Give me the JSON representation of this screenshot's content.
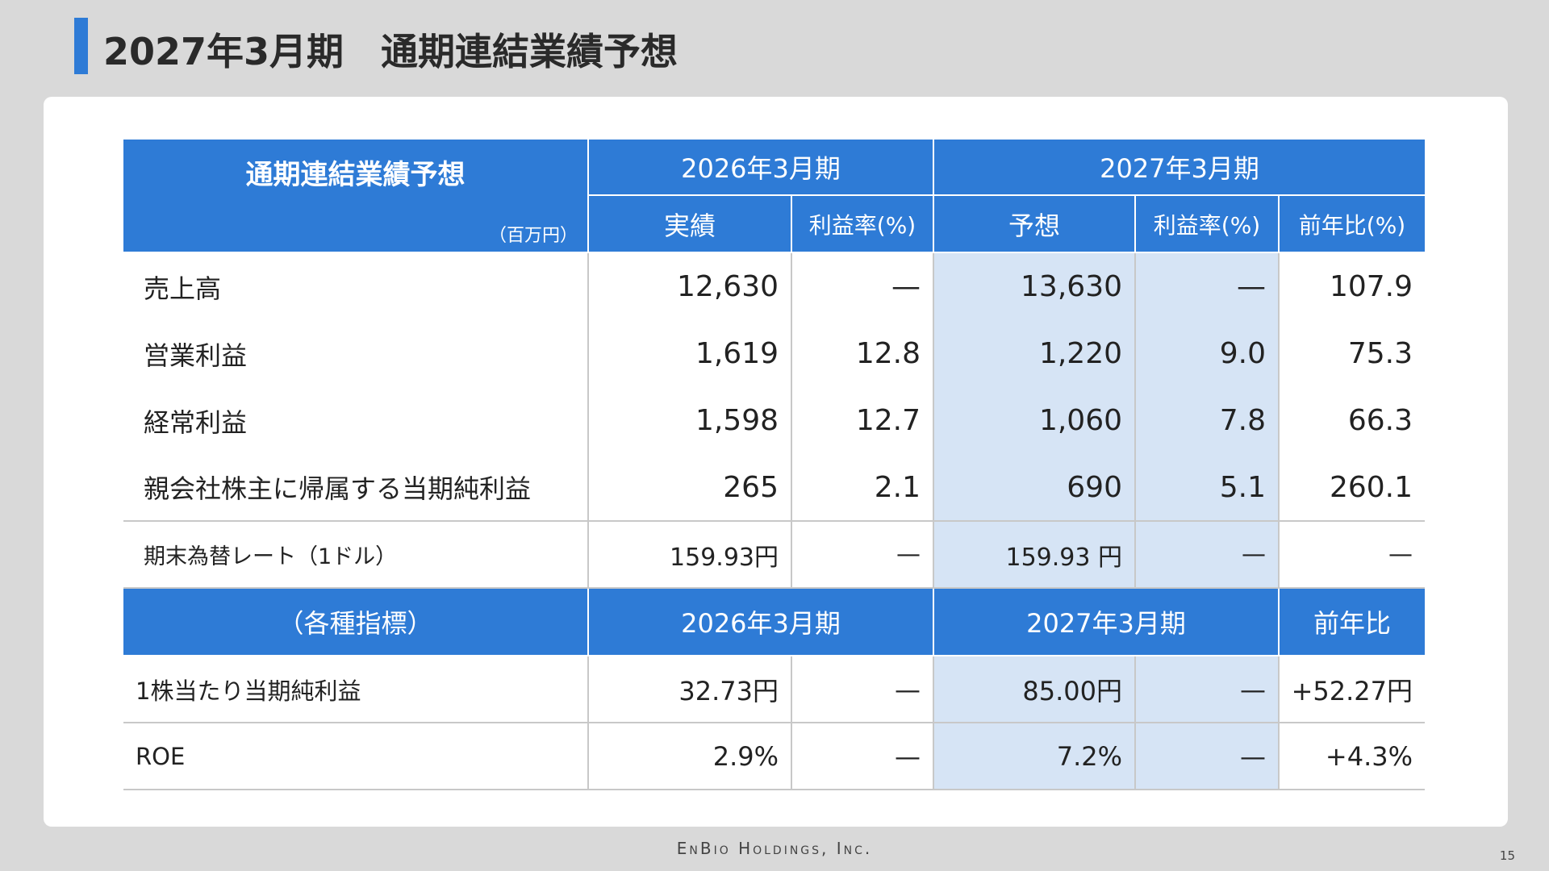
{
  "title": "2027年3月期　通期連結業績予想",
  "table": {
    "header": {
      "label": "通期連結業績予想",
      "unit": "（百万円）",
      "periods": [
        "2026年3月期",
        "2027年3月期"
      ],
      "columns": [
        "実績",
        "利益率(%)",
        "予想",
        "利益率(%)",
        "前年比(%)"
      ]
    },
    "rows": [
      [
        "売上高",
        "12,630",
        "—",
        "13,630",
        "—",
        "107.9"
      ],
      [
        "営業利益",
        "1,619",
        "12.8",
        "1,220",
        "9.0",
        "75.3"
      ],
      [
        "経常利益",
        "1,598",
        "12.7",
        "1,060",
        "7.8",
        "66.3"
      ],
      [
        "親会社株主に帰属する当期純利益",
        "265",
        "2.1",
        "690",
        "5.1",
        "260.1"
      ],
      [
        "期末為替レート（1ドル）",
        "159.93円",
        "—",
        "159.93 円",
        "—",
        "—"
      ]
    ],
    "subheader": [
      "（各種指標）",
      "2026年3月期",
      "2027年3月期",
      "前年比"
    ],
    "indicator_rows": [
      [
        "1株当たり当期純利益",
        "32.73円",
        "—",
        "85.00円",
        "—",
        "+52.27円"
      ],
      [
        "ROE",
        "2.9%",
        "—",
        "7.2%",
        "—",
        "+4.3%"
      ]
    ]
  },
  "footer": {
    "company": "EnBio Holdings, Inc.",
    "page": "15"
  }
}
